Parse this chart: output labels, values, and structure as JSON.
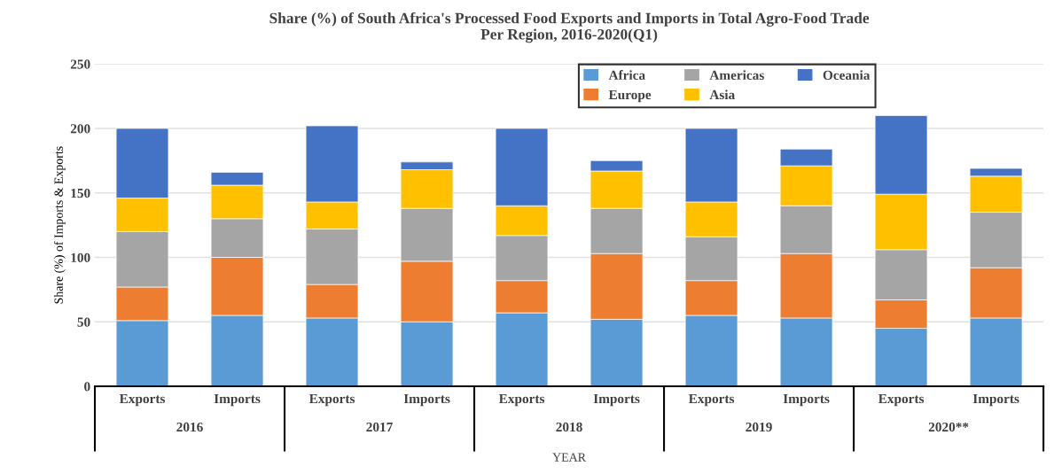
{
  "chart_data": {
    "type": "bar",
    "title": "Share (%) of South Africa's Processed Food Exports and Imports in Total Agro-Food Trade\nPer Region, 2016-2020(Q1)",
    "xlabel": "YEAR",
    "ylabel": "Share (%) of Imports & Exports",
    "categories": [
      "Exports",
      "Imports",
      "Exports",
      "Imports",
      "Exports",
      "Imports",
      "Exports",
      "Imports",
      "Exports",
      "Imports"
    ],
    "annotations": [
      "2016",
      "2017",
      "2018",
      "2019",
      "2020**"
    ],
    "stacked": true,
    "series": [
      {
        "name": "Africa",
        "color": "#5b9bd5",
        "values": [
          51,
          55,
          53,
          50,
          57,
          52,
          55,
          53,
          45,
          53
        ]
      },
      {
        "name": "Europe",
        "color": "#ed7d31",
        "values": [
          26,
          45,
          26,
          47,
          25,
          51,
          27,
          50,
          22,
          39
        ]
      },
      {
        "name": "Americas",
        "color": "#a5a5a5",
        "values": [
          43,
          30,
          43,
          41,
          35,
          35,
          34,
          37,
          39,
          43
        ]
      },
      {
        "name": "Asia",
        "color": "#ffc000",
        "values": [
          26,
          26,
          21,
          30,
          23,
          29,
          27,
          31,
          43,
          28
        ]
      },
      {
        "name": "Oceania",
        "color": "#4472c4",
        "values": [
          54,
          10,
          59,
          6,
          60,
          8,
          57,
          13,
          61,
          6
        ]
      }
    ],
    "ylim": [
      0,
      250
    ],
    "yticks": [
      0,
      50,
      100,
      150,
      200,
      250
    ],
    "grid": "y",
    "legend": "top right"
  }
}
